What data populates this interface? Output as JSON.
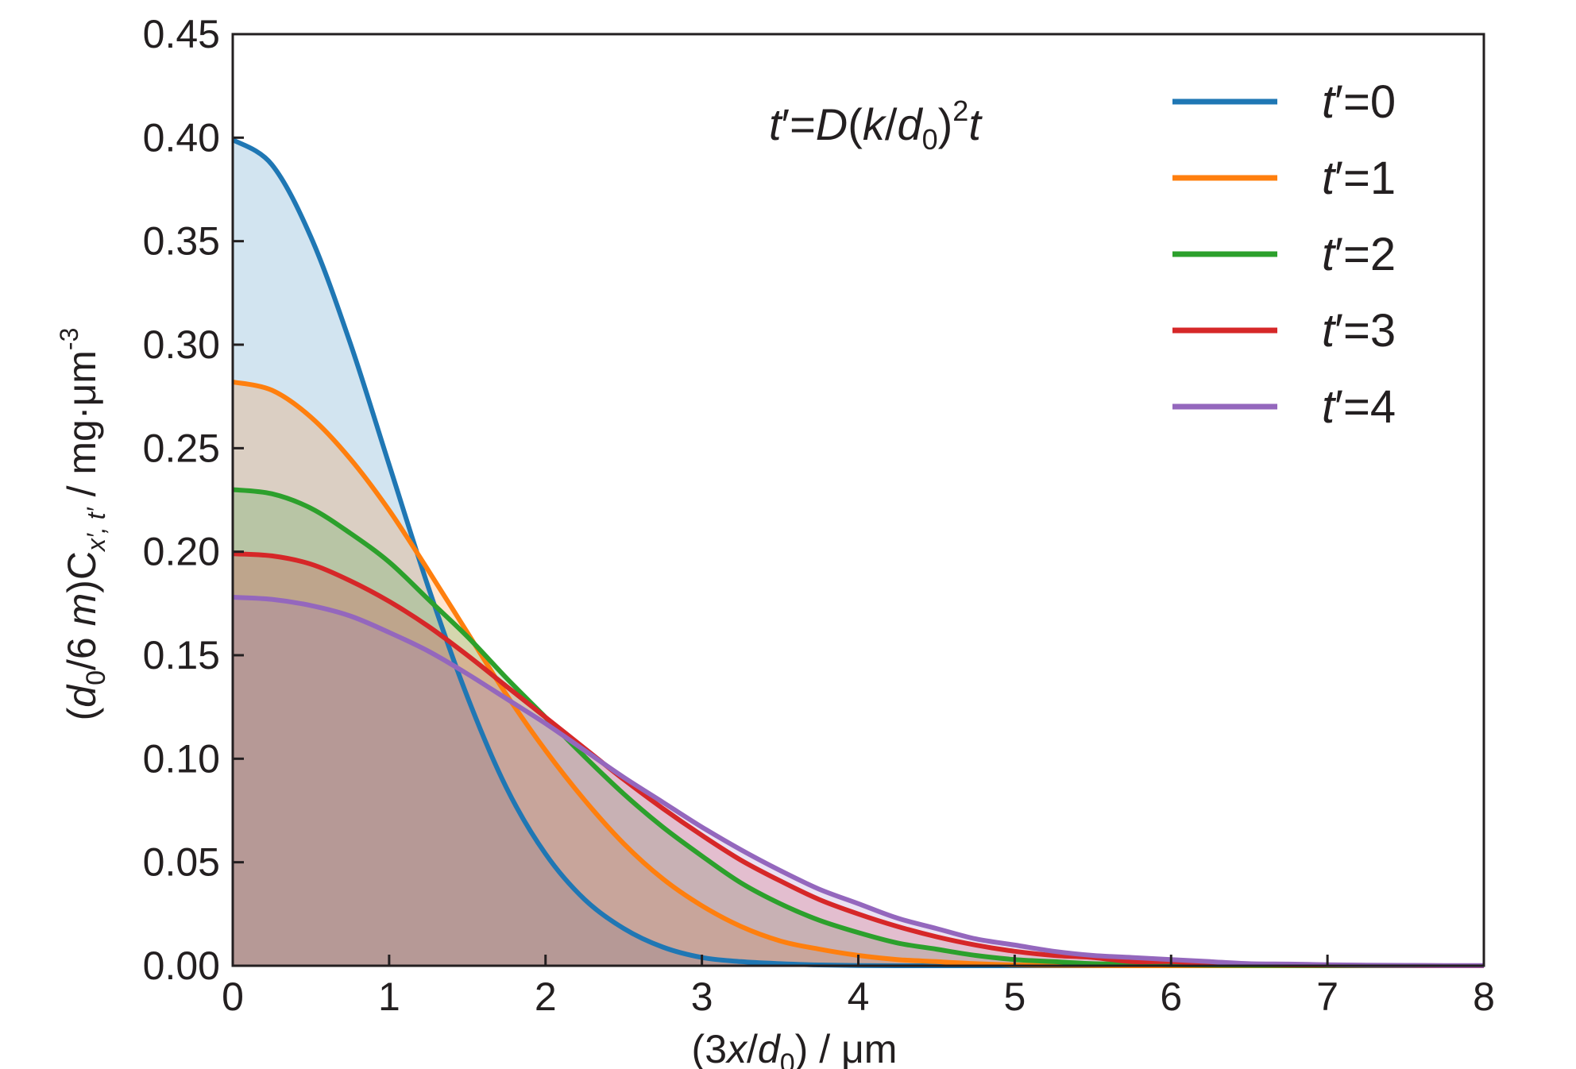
{
  "chart_data": {
    "type": "area",
    "xlabel": {
      "open": "(3",
      "var": "x",
      "slash": "/",
      "d": "d",
      "sub": "0",
      "close": ") / μm"
    },
    "ylabel": {
      "open": "(",
      "d": "d",
      "sub0": "0",
      "mid": "/6 ",
      "m": "m",
      "close": ")C",
      "csub": "x′, t′",
      "unit": " / mg·μm",
      "sup": "-3"
    },
    "annotation": {
      "t": "t",
      "prime": "′=",
      "D": "D",
      "open": "(",
      "k": "k",
      "slash": "/",
      "d": "d",
      "sub": "0",
      "close": ")",
      "sup": "2",
      "t2": "t"
    },
    "xlim": [
      0,
      8
    ],
    "ylim": [
      0,
      0.45
    ],
    "x_ticks": [
      "0",
      "1",
      "2",
      "3",
      "4",
      "5",
      "6",
      "7",
      "8"
    ],
    "y_ticks": [
      "0.00",
      "0.05",
      "0.10",
      "0.15",
      "0.20",
      "0.25",
      "0.30",
      "0.35",
      "0.40",
      "0.45"
    ],
    "grid": false,
    "legend_position": "top-right",
    "x": [
      0,
      0.25,
      0.5,
      0.75,
      1,
      1.25,
      1.5,
      1.75,
      2,
      2.25,
      2.5,
      2.75,
      3,
      3.25,
      3.5,
      3.75,
      4,
      4.25,
      4.5,
      4.75,
      5,
      5.25,
      5.5,
      5.75,
      6,
      6.25,
      6.5,
      6.75,
      7,
      7.25,
      7.5,
      7.75,
      8
    ],
    "series": [
      {
        "t": "t",
        "eq": "′=0",
        "color": "#1f77b4",
        "fill": "#1f77b4",
        "values": [
          0.399,
          0.387,
          0.352,
          0.301,
          0.242,
          0.183,
          0.13,
          0.086,
          0.054,
          0.032,
          0.018,
          0.009,
          0.004,
          0.002,
          0.001,
          0.0004,
          0.0001,
          0.0,
          0.0,
          0.0,
          0.0,
          0.0,
          0.0,
          0.0,
          0.0,
          0.0,
          0.0,
          0.0,
          0.0,
          0.0,
          0.0,
          0.0,
          0.0
        ]
      },
      {
        "t": "t",
        "eq": "′=1",
        "color": "#ff7f0e",
        "fill": "#ff7f0e",
        "values": [
          0.282,
          0.278,
          0.265,
          0.245,
          0.22,
          0.191,
          0.161,
          0.131,
          0.104,
          0.08,
          0.059,
          0.042,
          0.029,
          0.019,
          0.012,
          0.008,
          0.005,
          0.003,
          0.002,
          0.001,
          0.0004,
          0.0002,
          0.0001,
          0.0,
          0.0,
          0.0,
          0.0,
          0.0,
          0.0,
          0.0,
          0.0,
          0.0,
          0.0
        ]
      },
      {
        "t": "t",
        "eq": "′=2",
        "color": "#2ca02c",
        "fill": "#2ca02c",
        "values": [
          0.23,
          0.228,
          0.221,
          0.209,
          0.195,
          0.177,
          0.159,
          0.139,
          0.12,
          0.101,
          0.083,
          0.067,
          0.053,
          0.04,
          0.03,
          0.022,
          0.016,
          0.011,
          0.008,
          0.005,
          0.003,
          0.002,
          0.001,
          0.0008,
          0.0005,
          0.0003,
          0.0002,
          0.0001,
          0.0,
          0.0,
          0.0,
          0.0,
          0.0
        ]
      },
      {
        "t": "t",
        "eq": "′=3",
        "color": "#d62728",
        "fill": "#d62728",
        "values": [
          0.199,
          0.198,
          0.194,
          0.186,
          0.176,
          0.164,
          0.15,
          0.135,
          0.12,
          0.105,
          0.09,
          0.076,
          0.063,
          0.051,
          0.041,
          0.032,
          0.025,
          0.019,
          0.014,
          0.01,
          0.007,
          0.005,
          0.004,
          0.002,
          0.002,
          0.001,
          0.0007,
          0.0004,
          0.0003,
          0.0002,
          0.0001,
          0.0,
          0.0
        ]
      },
      {
        "t": "t",
        "eq": "′=4",
        "color": "#9467bd",
        "fill": "#9467bd",
        "values": [
          0.178,
          0.177,
          0.174,
          0.169,
          0.161,
          0.152,
          0.141,
          0.129,
          0.117,
          0.104,
          0.091,
          0.079,
          0.067,
          0.056,
          0.046,
          0.037,
          0.03,
          0.023,
          0.018,
          0.013,
          0.01,
          0.007,
          0.005,
          0.004,
          0.003,
          0.002,
          0.001,
          0.0008,
          0.0005,
          0.0003,
          0.0002,
          0.0001,
          0.0001
        ]
      }
    ]
  }
}
